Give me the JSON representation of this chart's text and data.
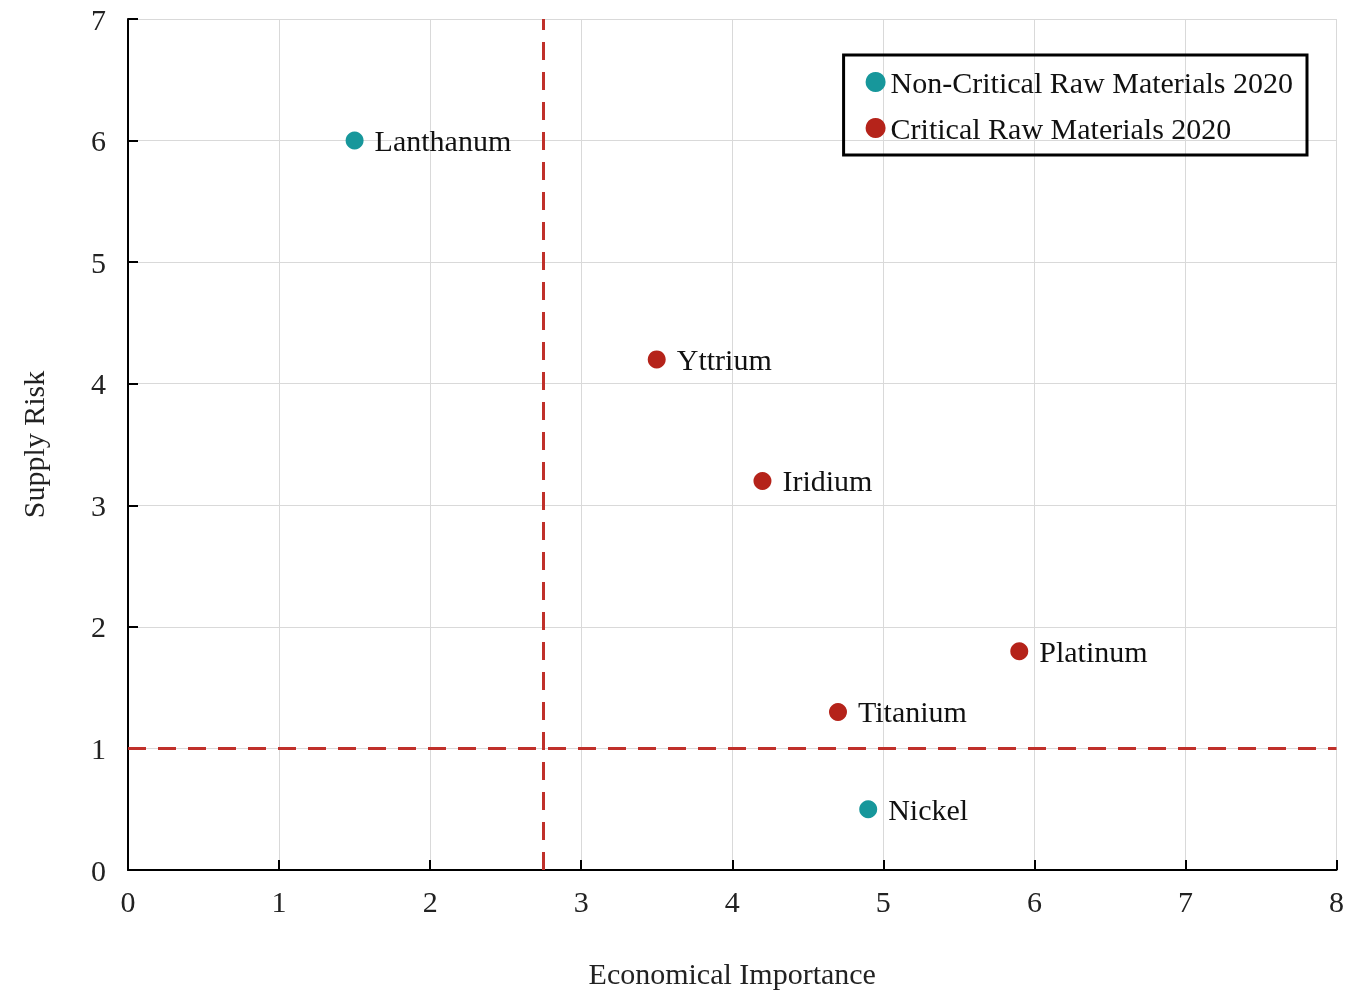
{
  "chart_data": {
    "type": "scatter",
    "xlabel": "Economical Importance",
    "ylabel": "Supply Risk",
    "xlim": [
      0,
      8
    ],
    "xticks": [
      0,
      1,
      2,
      3,
      4,
      5,
      6,
      7,
      8
    ],
    "ylim": [
      0,
      7
    ],
    "yticks": [
      0,
      1,
      2,
      3,
      4,
      5,
      6,
      7
    ],
    "grid": true,
    "legend": "top right",
    "marker": "circle",
    "series": [
      {
        "name": "Non-Critical Raw Materials 2020",
        "color": "#17979b",
        "x": [
          1.5,
          4.9
        ],
        "values": [
          6.0,
          0.5
        ]
      },
      {
        "name": "Critical Raw Materials 2020",
        "color": "#b5231a",
        "x": [
          3.5,
          4.2,
          5.9,
          4.7
        ],
        "values": [
          4.2,
          3.2,
          1.8,
          1.3
        ]
      }
    ],
    "ref_lines": [
      {
        "axis": "x",
        "value": 2.75,
        "color": "#c0302a",
        "line_style": "dashed"
      },
      {
        "axis": "y",
        "value": 1,
        "color": "#c0302a",
        "line_style": "dashed"
      }
    ],
    "annotations": [
      {
        "text": "Lanthanum",
        "x": 1.5,
        "y": 6.0
      },
      {
        "text": "Yttrium",
        "x": 3.5,
        "y": 4.2
      },
      {
        "text": "Iridium",
        "x": 4.2,
        "y": 3.2
      },
      {
        "text": "Platinum",
        "x": 5.9,
        "y": 1.8
      },
      {
        "text": "Titanium",
        "x": 4.7,
        "y": 1.3
      },
      {
        "text": "Nickel",
        "x": 4.9,
        "y": 0.5
      }
    ]
  }
}
